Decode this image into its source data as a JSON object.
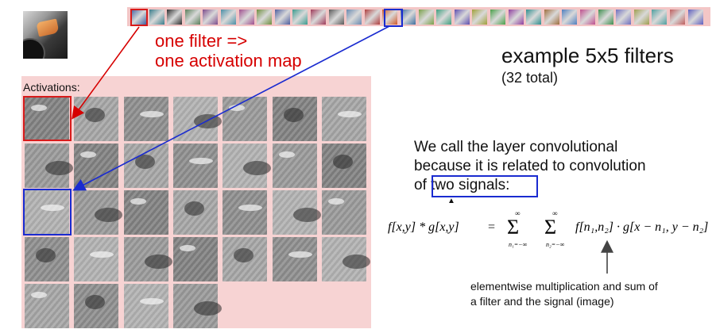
{
  "labels": {
    "one_filter": "one filter =>",
    "one_map": "one activation map",
    "example_title": "example 5x5 filters",
    "example_sub": "(32 total)",
    "activations": "Activations:",
    "line1": "We call the layer convolutional",
    "line2": "because it is related to convolution",
    "line3_prefix": "of ",
    "line3_highlight": "two signals:",
    "note1": "elementwise multiplication and sum of",
    "note2": "a filter and the signal (image)"
  },
  "formula": {
    "lhs": "f[x,y] * g[x,y]",
    "equals": "=",
    "sum_top1": "∞",
    "sum_top2": "∞",
    "sum_bottom1": "n₁=−∞",
    "sum_bottom2": "n₂=−∞",
    "rhs": "f[n₁,n₂] · g[x − n₁, y − n₂]"
  },
  "colors": {
    "red": "#d60000",
    "blue": "#1a2bd0",
    "panel_pink": "#f7d3d3",
    "strip_pink": "#f3c6c6"
  },
  "filter_colors": [
    "#3f5fa0",
    "#3a7d8c",
    "#2e2e2e",
    "#5b7f5b",
    "#7d4c8c",
    "#4b8fa6",
    "#a04f8f",
    "#6f8f3f",
    "#4f5fa0",
    "#3b9b8f",
    "#9f3b5a",
    "#5a5a5a",
    "#6a8ab0",
    "#b04040",
    "#d05a2a",
    "#3f6f9f",
    "#7aa04a",
    "#3f9f7f",
    "#5f4fb0",
    "#a0a03a",
    "#4aa04a",
    "#8f3f9f",
    "#2f8f8f",
    "#9f6f3f",
    "#4f7fbf",
    "#bf4f8f",
    "#3f8f4f",
    "#6f6fbf",
    "#9f9f4f",
    "#4f9f9f",
    "#bf5f5f",
    "#5f5fbf"
  ],
  "activation_grid": {
    "rows": [
      7,
      7,
      7,
      7,
      4
    ]
  },
  "icons": {
    "arrow_red": "arrow-red-icon",
    "arrow_blue": "arrow-blue-icon",
    "arrow_up": "arrow-up-icon"
  }
}
